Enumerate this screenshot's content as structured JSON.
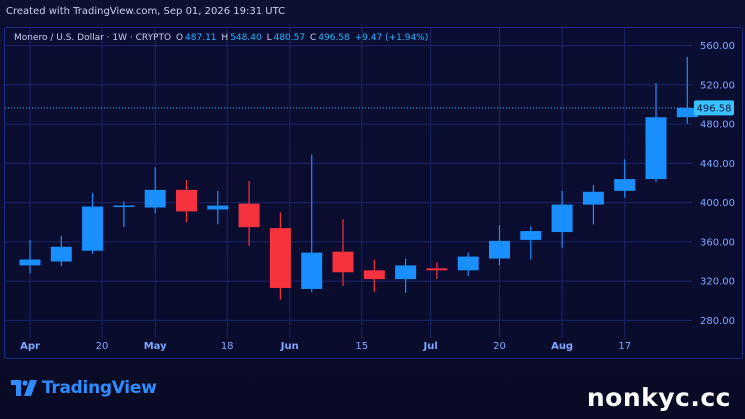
{
  "header": {
    "created_text": "Created with TradingView.com, Sep 01, 2026 19:31 UTC"
  },
  "legend": {
    "symbol": "Monero / U.S. Dollar · 1W · CRYPTO",
    "o_label": "O",
    "open": "487.11",
    "h_label": "H",
    "high": "548.40",
    "l_label": "L",
    "low": "480.57",
    "c_label": "C",
    "close": "496.58",
    "change": "+9.47 (+1.94%)"
  },
  "price_label": "496.58",
  "logo_text": "TradingView",
  "watermark": "nonkyc.cc",
  "colors": {
    "up": "#1a8fff",
    "down": "#f7323f",
    "grid": "#1c2468",
    "axis_text": "#7fa7ff",
    "price_line": "#2fb6ff"
  },
  "icons": [
    "tradingview-logo-icon"
  ],
  "chart_data": {
    "type": "candlestick",
    "timeframe": "1W",
    "y_ticks": [
      280,
      320,
      360,
      400,
      440,
      480,
      520,
      560
    ],
    "ylim": [
      262,
      578
    ],
    "x_tick_labels": [
      "Apr",
      "20",
      "May",
      "18",
      "Jun",
      "15",
      "Jul",
      "20",
      "Aug",
      "17"
    ],
    "x_tick_candle_index": [
      0,
      2.3,
      4,
      6.3,
      8.3,
      10.6,
      12.8,
      15,
      17,
      19
    ],
    "last_price": 496.58,
    "candles": [
      {
        "o": 336,
        "h": 362,
        "l": 328,
        "c": 342
      },
      {
        "o": 340,
        "h": 366,
        "l": 335,
        "c": 355
      },
      {
        "o": 351,
        "h": 410,
        "l": 348,
        "c": 396
      },
      {
        "o": 397,
        "h": 401,
        "l": 375,
        "c": 397
      },
      {
        "o": 395,
        "h": 436,
        "l": 389,
        "c": 413
      },
      {
        "o": 413,
        "h": 423,
        "l": 380,
        "c": 391
      },
      {
        "o": 393,
        "h": 412,
        "l": 378,
        "c": 397
      },
      {
        "o": 399,
        "h": 422,
        "l": 356,
        "c": 375
      },
      {
        "o": 374,
        "h": 390,
        "l": 301,
        "c": 313
      },
      {
        "o": 312,
        "h": 449,
        "l": 309,
        "c": 349
      },
      {
        "o": 350,
        "h": 383,
        "l": 315,
        "c": 329
      },
      {
        "o": 331,
        "h": 342,
        "l": 309,
        "c": 322
      },
      {
        "o": 322,
        "h": 343,
        "l": 308,
        "c": 336
      },
      {
        "o": 333,
        "h": 339,
        "l": 322,
        "c": 331
      },
      {
        "o": 331,
        "h": 349,
        "l": 325,
        "c": 345
      },
      {
        "o": 343,
        "h": 377,
        "l": 336,
        "c": 361
      },
      {
        "o": 362,
        "h": 376,
        "l": 342,
        "c": 371
      },
      {
        "o": 370,
        "h": 412,
        "l": 354,
        "c": 398
      },
      {
        "o": 398,
        "h": 418,
        "l": 378,
        "c": 411
      },
      {
        "o": 412,
        "h": 444,
        "l": 405,
        "c": 424
      },
      {
        "o": 424,
        "h": 522,
        "l": 421,
        "c": 487
      },
      {
        "o": 487.11,
        "h": 548.4,
        "l": 480.57,
        "c": 496.58
      }
    ]
  }
}
